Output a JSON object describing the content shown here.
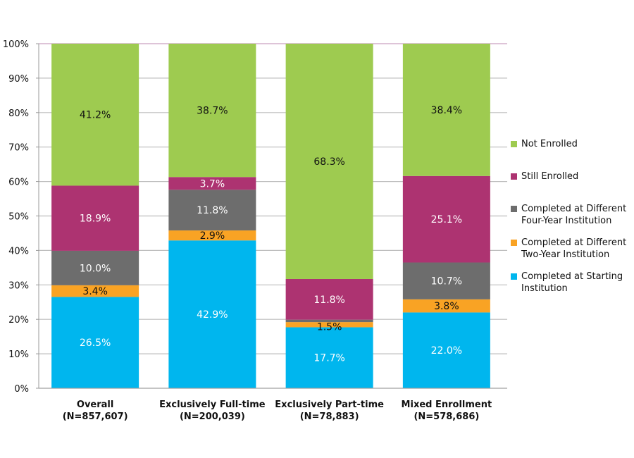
{
  "chart_data": {
    "type": "bar",
    "stacked": true,
    "categories": [
      "Overall\n(N=857,607)",
      "Exclusively Full-time\n(N=200,039)",
      "Exclusively Part-time\n(N=78,883)",
      "Mixed Enrollment\n(N=578,686)"
    ],
    "category_lines": [
      [
        "Overall",
        "(N=857,607)"
      ],
      [
        "Exclusively Full-time",
        "(N=200,039)"
      ],
      [
        "Exclusively Part-time",
        "(N=78,883)"
      ],
      [
        "Mixed Enrollment",
        "(N=578,686)"
      ]
    ],
    "ylim": [
      0,
      100
    ],
    "yticks": [
      "0%",
      "10%",
      "20%",
      "30%",
      "40%",
      "50%",
      "60%",
      "70%",
      "80%",
      "90%",
      "100%"
    ],
    "grid": true,
    "legend_position": "right",
    "series": [
      {
        "name": "Completed at Starting Institution",
        "color": "#00B6EE",
        "label_color": "#ffffff",
        "values": [
          26.5,
          42.9,
          17.7,
          22.0
        ],
        "labels": [
          "26.5%",
          "42.9%",
          "17.7%",
          "22.0%"
        ]
      },
      {
        "name": "Completed at Different Two-Year Institution",
        "color": "#F9A324",
        "label_color": "#111111",
        "values": [
          3.4,
          2.9,
          1.5,
          3.8
        ],
        "labels": [
          "3.4%",
          "2.9%",
          "1.5%",
          "3.8%"
        ]
      },
      {
        "name": "Completed at Different Four-Year Institution",
        "color": "#6D6D6D",
        "label_color": "#ffffff",
        "values": [
          10.0,
          11.8,
          0.7,
          10.7
        ],
        "labels": [
          "10.0%",
          "11.8%",
          "0.7%",
          "10.7%"
        ]
      },
      {
        "name": "Still Enrolled",
        "color": "#AD3371",
        "label_color": "#ffffff",
        "values": [
          18.9,
          3.7,
          11.8,
          25.1
        ],
        "labels": [
          "18.9%",
          "3.7%",
          "11.8%",
          "25.1%"
        ]
      },
      {
        "name": "Not Enrolled",
        "color": "#9ECB50",
        "label_color": "#111111",
        "values": [
          41.2,
          38.7,
          68.3,
          38.4
        ],
        "labels": [
          "41.2%",
          "38.7%",
          "68.3%",
          "38.4%"
        ]
      }
    ],
    "legend": [
      {
        "lines": [
          "Not Enrolled"
        ],
        "color": "#9ECB50"
      },
      {
        "lines": [
          "Still Enrolled"
        ],
        "color": "#AD3371"
      },
      {
        "lines": [
          "Completed at Different",
          "Four-Year Institution"
        ],
        "color": "#6D6D6D"
      },
      {
        "lines": [
          "Completed at Different",
          "Two-Year Institution"
        ],
        "color": "#F9A324"
      },
      {
        "lines": [
          "Completed at Starting",
          "Institution"
        ],
        "color": "#00B6EE"
      }
    ]
  }
}
